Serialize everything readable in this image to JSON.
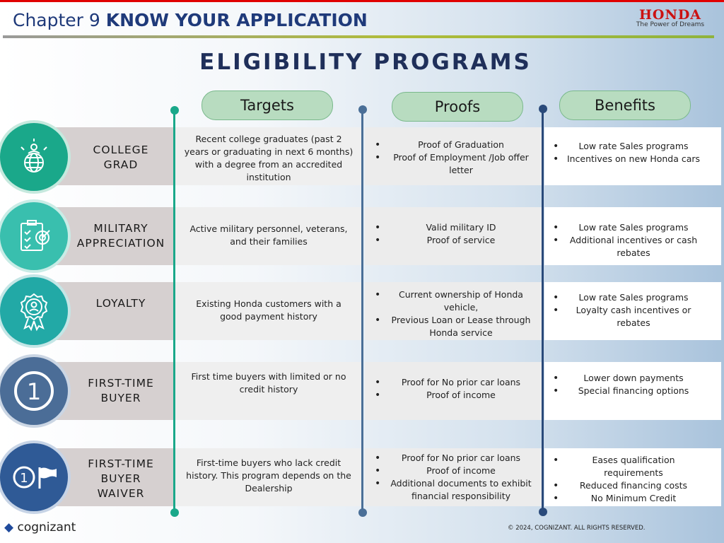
{
  "header": {
    "chapter_prefix": "Chapter 9",
    "chapter_title": "KNOW YOUR APPLICATION",
    "brand": "HONDA",
    "brand_tagline": "The Power of Dreams"
  },
  "page_title": "ELIGIBILITY PROGRAMS",
  "columns": {
    "targets": "Targets",
    "proofs": "Proofs",
    "benefits": "Benefits"
  },
  "rows": [
    {
      "name_lines": [
        "COLLEGE",
        "GRAD"
      ],
      "icon": "graduate-globe-icon",
      "target": "Recent college graduates (past 2 years or graduating in next 6 months) with a degree from an accredited institution",
      "proofs": [
        "Proof of Graduation",
        "Proof of Employment /Job offer letter"
      ],
      "benefits": [
        "Low rate Sales programs",
        "Incentives on new Honda cars"
      ]
    },
    {
      "name_lines": [
        "MILITARY",
        "APPRECIATION"
      ],
      "icon": "clipboard-target-icon",
      "target": "Active military personnel, veterans, and their families",
      "proofs": [
        "Valid military ID",
        "Proof of service"
      ],
      "benefits": [
        "Low rate Sales programs",
        "Additional incentives or cash rebates"
      ]
    },
    {
      "name_lines": [
        "LOYALTY"
      ],
      "icon": "award-ribbon-icon",
      "target": "Existing Honda customers with a good payment history",
      "proofs": [
        "Current ownership of Honda vehicle,",
        "Previous Loan or Lease through Honda service"
      ],
      "benefits": [
        "Low rate Sales programs",
        "Loyalty cash incentives or rebates"
      ]
    },
    {
      "name_lines": [
        "FIRST-TIME",
        "BUYER"
      ],
      "icon": "number-one-icon",
      "target": "First time buyers with limited or no credit history",
      "proofs": [
        "Proof for No prior car loans",
        "Proof of income"
      ],
      "benefits": [
        "Lower down payments",
        "Special financing options"
      ]
    },
    {
      "name_lines": [
        "FIRST-TIME",
        "BUYER",
        "WAIVER"
      ],
      "icon": "number-one-flag-icon",
      "target": "First-time buyers who lack credit history. This program depends on the Dealership",
      "proofs": [
        "Proof for No prior car loans",
        "Proof of income",
        "Additional documents to exhibit financial responsibility"
      ],
      "benefits": [
        "Eases qualification requirements",
        "Reduced financing costs",
        "No Minimum Credit"
      ]
    }
  ],
  "footer": {
    "company": "cognizant",
    "copyright": "© 2024, COGNIZANT. ALL RIGHTS RESERVED."
  },
  "colors": {
    "title_navy": "#1f2f5a",
    "chapter_blue": "#1f3a7a",
    "honda_red": "#cc1111",
    "pill_green": "#b8dcc0",
    "line_green": "#1aa88a",
    "line_blue": "#4a6f97"
  }
}
